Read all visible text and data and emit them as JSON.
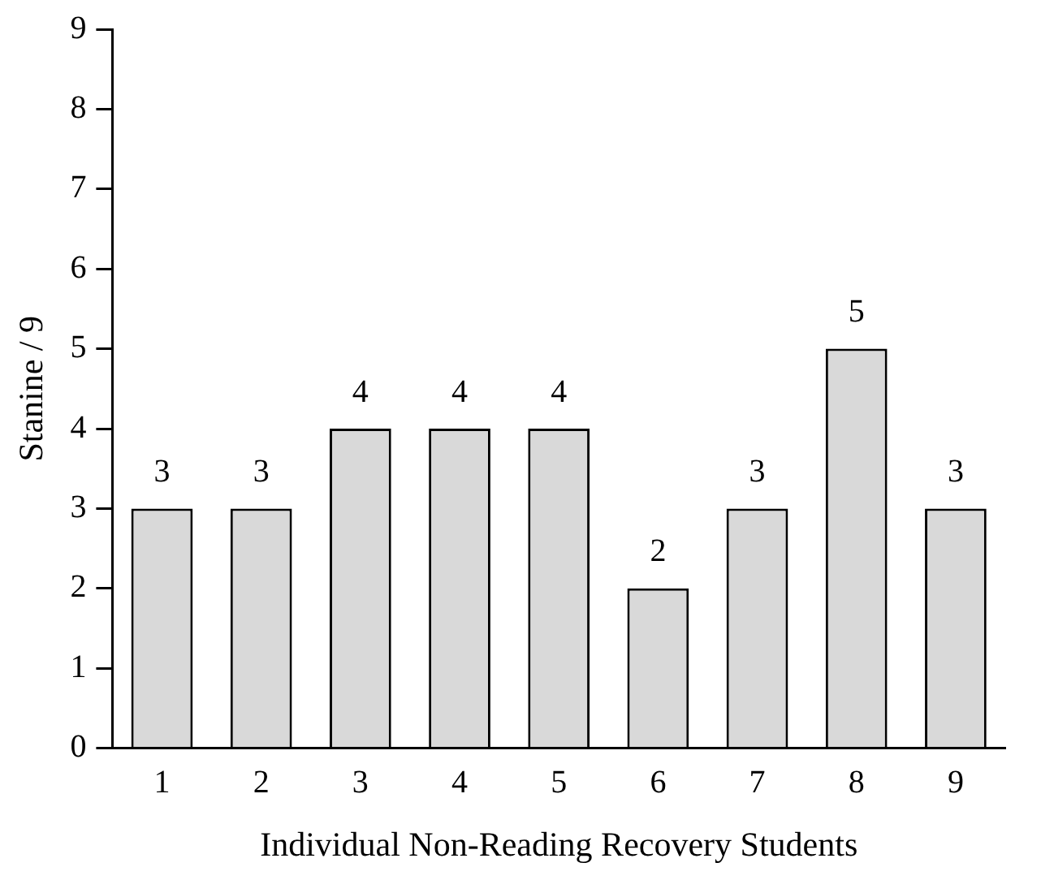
{
  "chart_data": {
    "type": "bar",
    "xlabel": "Individual Non-Reading Recovery Students",
    "ylabel": "Stanine / 9",
    "categories": [
      "1",
      "2",
      "3",
      "4",
      "5",
      "6",
      "7",
      "8",
      "9"
    ],
    "values": [
      3,
      3,
      4,
      4,
      4,
      2,
      3,
      5,
      3
    ],
    "color": "#d9d9d9",
    "ylim": [
      0,
      9
    ],
    "yticks": [
      0,
      1,
      2,
      3,
      4,
      5,
      6,
      7,
      8,
      9
    ],
    "grid": false,
    "legend": false,
    "data_labels": true
  }
}
